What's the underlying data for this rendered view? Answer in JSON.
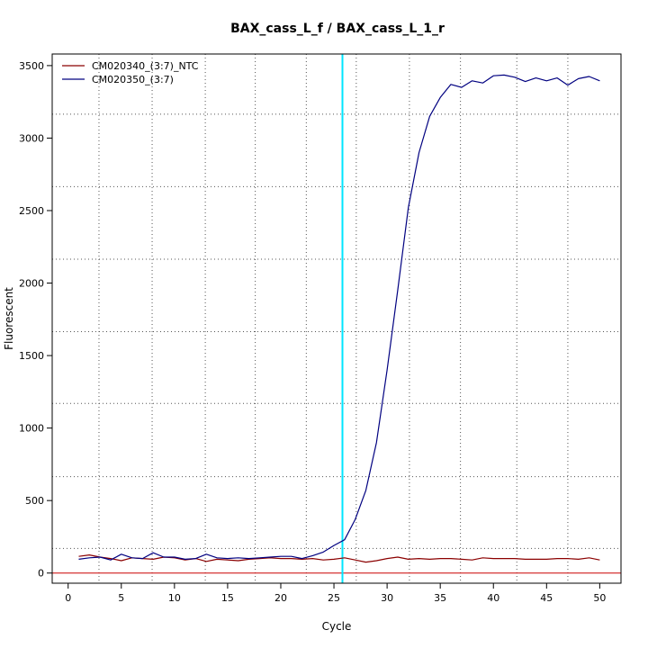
{
  "chart_data": {
    "type": "line",
    "title": "BAX_cass_L_f / BAX_cass_L_1_r",
    "xlabel": "Cycle",
    "ylabel": "Fluorescent",
    "xlim": [
      -1.5,
      52
    ],
    "ylim": [
      -70,
      3580
    ],
    "xticks": [
      0,
      5,
      10,
      15,
      20,
      25,
      30,
      35,
      40,
      45,
      50
    ],
    "yticks": [
      0,
      500,
      1000,
      1500,
      2000,
      2500,
      3000,
      3500
    ],
    "grid": true,
    "grid_x": [
      2.9,
      7.9,
      12.9,
      17.6,
      22.4,
      27.1,
      32.1,
      36.9,
      42.2,
      47.0
    ],
    "grid_y": [
      170,
      665,
      1170,
      1665,
      2165,
      2665,
      3165
    ],
    "threshold": {
      "orientation": "vertical",
      "x": 25.8,
      "color": "#00e5ff"
    },
    "baseline": {
      "y": 0,
      "color": "#cc0000"
    },
    "legend_position": "top-left",
    "series": [
      {
        "name": "CM020340_(3:7)_NTC",
        "color": "#8b0000",
        "x": [
          1,
          2,
          3,
          4,
          5,
          6,
          7,
          8,
          9,
          10,
          11,
          12,
          13,
          14,
          15,
          16,
          17,
          18,
          19,
          20,
          21,
          22,
          23,
          24,
          25,
          26,
          27,
          28,
          29,
          30,
          31,
          32,
          33,
          34,
          35,
          36,
          37,
          38,
          39,
          40,
          41,
          42,
          43,
          44,
          45,
          46,
          47,
          48,
          49,
          50
        ],
        "y": [
          115,
          125,
          110,
          100,
          85,
          105,
          100,
          95,
          110,
          105,
          90,
          100,
          80,
          95,
          90,
          85,
          95,
          100,
          105,
          100,
          100,
          95,
          100,
          90,
          95,
          105,
          90,
          75,
          85,
          100,
          110,
          95,
          100,
          95,
          100,
          100,
          95,
          90,
          105,
          100,
          100,
          100,
          95,
          95,
          95,
          100,
          100,
          95,
          105,
          90
        ]
      },
      {
        "name": "CM020350_(3:7)",
        "color": "#000080",
        "x": [
          1,
          2,
          3,
          4,
          5,
          6,
          7,
          8,
          9,
          10,
          11,
          12,
          13,
          14,
          15,
          16,
          17,
          18,
          19,
          20,
          21,
          22,
          23,
          24,
          25,
          26,
          27,
          28,
          29,
          30,
          31,
          32,
          33,
          34,
          35,
          36,
          37,
          38,
          39,
          40,
          41,
          42,
          43,
          44,
          45,
          46,
          47,
          48,
          49,
          50
        ],
        "y": [
          95,
          105,
          110,
          90,
          130,
          105,
          100,
          140,
          110,
          110,
          95,
          100,
          130,
          105,
          100,
          105,
          100,
          105,
          110,
          115,
          115,
          100,
          120,
          145,
          190,
          230,
          370,
          570,
          900,
          1400,
          1950,
          2520,
          2900,
          3150,
          3280,
          3370,
          3350,
          3395,
          3380,
          3430,
          3435,
          3420,
          3390,
          3415,
          3395,
          3415,
          3365,
          3410,
          3425,
          3395
        ]
      }
    ]
  }
}
